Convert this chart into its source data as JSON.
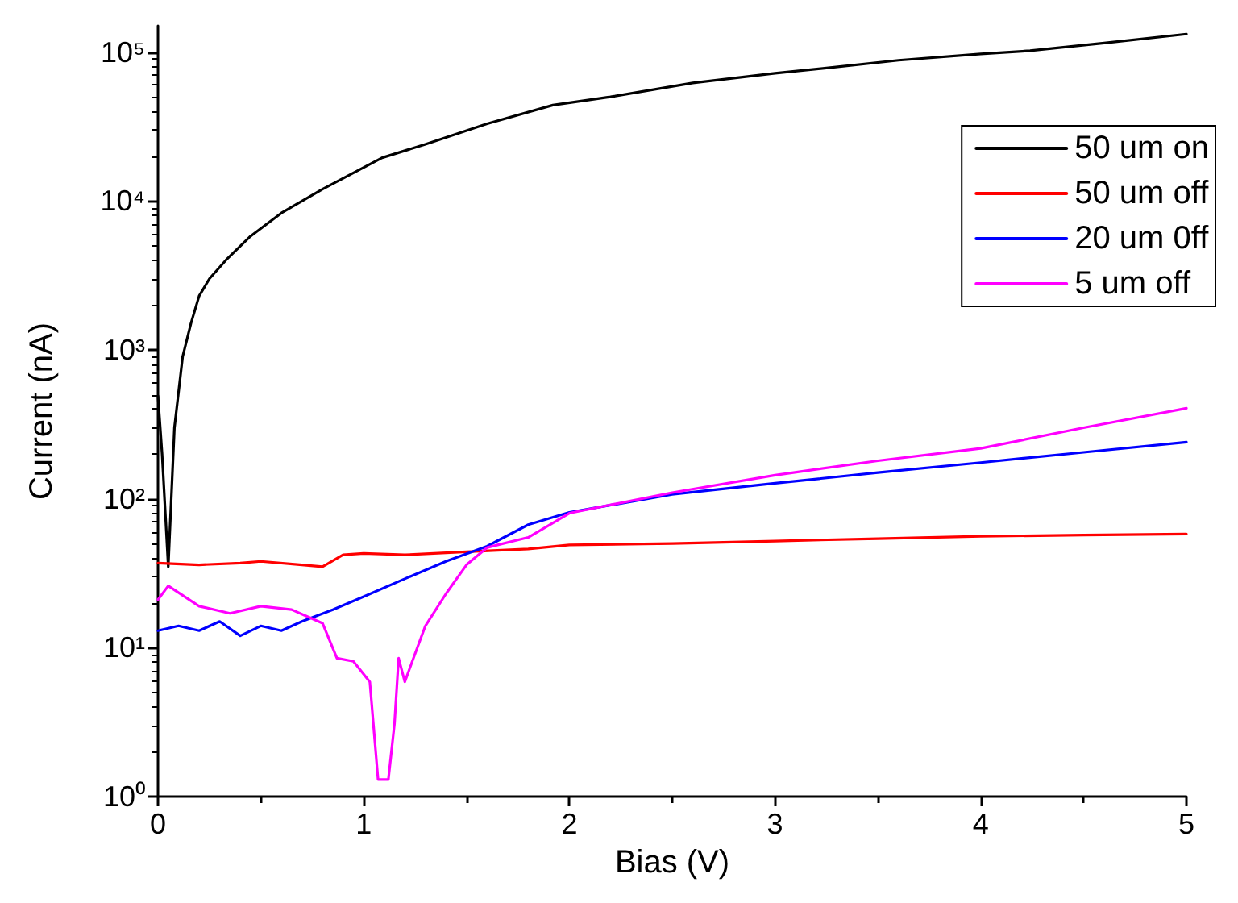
{
  "chart_data": {
    "type": "line",
    "xlabel": "Bias (V)",
    "ylabel": "Current (nA)",
    "log": "y",
    "grid": false,
    "legend": "top right",
    "marker": "none",
    "line_style": "solid",
    "xlim": [
      0,
      5
    ],
    "xticks": [
      0,
      1,
      2,
      3,
      4,
      5
    ],
    "ylim": [
      1,
      150000
    ],
    "yticks": [
      {
        "value": 1,
        "label": "10⁰"
      },
      {
        "value": 10,
        "label": "10¹"
      },
      {
        "value": 100,
        "label": "10²"
      },
      {
        "value": 1000,
        "label": "10³"
      },
      {
        "value": 10000,
        "label": "10⁴"
      },
      {
        "value": 100000,
        "label": "10⁵"
      }
    ],
    "series": [
      {
        "name": "50 um on",
        "color": "#000000",
        "x": [
          0,
          0.02,
          0.05,
          0.08,
          0.12,
          0.16,
          0.2,
          0.25,
          0.33,
          0.45,
          0.6,
          0.8,
          1.09,
          1.3,
          1.6,
          1.92,
          2.2,
          2.6,
          3.0,
          3.25,
          3.6,
          4.0,
          4.24,
          4.6,
          5.0
        ],
        "values": [
          490,
          200,
          35,
          300,
          900,
          1500,
          2300,
          3000,
          4000,
          5800,
          8300,
          12000,
          19500,
          24000,
          33000,
          44000,
          50000,
          62000,
          72000,
          78000,
          88000,
          97000,
          102000,
          115000,
          132000
        ]
      },
      {
        "name": "50 um off",
        "color": "#ff0000",
        "x": [
          0,
          0.2,
          0.4,
          0.5,
          0.7,
          0.8,
          0.9,
          1.0,
          1.2,
          1.5,
          1.8,
          2.0,
          2.5,
          3.0,
          3.5,
          4.0,
          4.5,
          5.0
        ],
        "values": [
          37,
          36,
          37,
          38,
          36,
          35,
          42,
          43,
          42,
          44,
          46,
          49,
          50,
          52,
          54,
          56,
          57,
          58
        ]
      },
      {
        "name": "20 um 0ff",
        "color": "#0000ff",
        "x": [
          0,
          0.1,
          0.2,
          0.3,
          0.4,
          0.5,
          0.6,
          0.7,
          0.85,
          1.0,
          1.2,
          1.4,
          1.6,
          1.8,
          2.0,
          2.5,
          3.0,
          3.5,
          4.0,
          4.5,
          5.0
        ],
        "values": [
          13,
          14,
          13,
          15,
          12,
          14,
          13,
          15,
          18,
          22,
          29,
          38,
          48,
          67,
          81,
          107,
          127,
          150,
          175,
          205,
          240
        ]
      },
      {
        "name": "5 um off",
        "color": "#ff00ff",
        "x": [
          0,
          0.05,
          0.2,
          0.35,
          0.5,
          0.65,
          0.8,
          0.87,
          0.95,
          1.03,
          1.07,
          1.12,
          1.15,
          1.17,
          1.2,
          1.3,
          1.4,
          1.5,
          1.6,
          1.8,
          2.0,
          2.5,
          3.0,
          3.5,
          4.0,
          4.5,
          5.0
        ],
        "values": [
          21,
          26,
          19,
          17,
          19,
          18,
          14.6,
          8.5,
          8.1,
          5.9,
          1.3,
          1.3,
          3.1,
          8.5,
          5.9,
          14,
          23,
          36,
          47,
          55,
          80,
          110,
          144,
          180,
          218,
          300,
          405
        ]
      }
    ]
  }
}
